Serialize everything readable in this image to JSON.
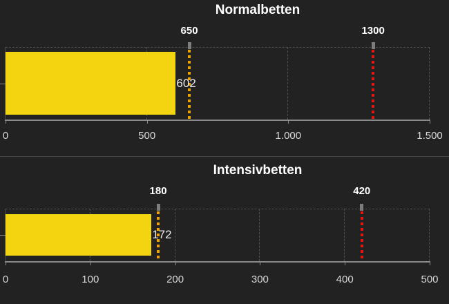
{
  "page": {
    "background": "#212221"
  },
  "colors": {
    "bar": "#F2D411",
    "target_marker": "#EFA400",
    "limit_marker": "#E31414",
    "marker_cap": "#7d7d7d",
    "axis": "#8a8a8a",
    "y_axis": "#4a4a4a",
    "grid": "#4f4f4f",
    "title_text": "#ffffff",
    "tick_text": "#d9d9d9",
    "value_text": "#eaeaea",
    "divider": "#444444"
  },
  "chart_data": [
    {
      "type": "bar",
      "orientation": "horizontal",
      "title": "Normalbetten",
      "bar": {
        "value": 602,
        "label": "602"
      },
      "markers": [
        {
          "value": 650,
          "label": "650",
          "role": "target"
        },
        {
          "value": 1300,
          "label": "1300",
          "role": "limit"
        }
      ],
      "xlim": [
        0,
        1500
      ],
      "ticks": [
        {
          "value": 0,
          "label": "0"
        },
        {
          "value": 500,
          "label": "500"
        },
        {
          "value": 1000,
          "label": "1.000"
        },
        {
          "value": 1500,
          "label": "1.500"
        }
      ],
      "grid": true
    },
    {
      "type": "bar",
      "orientation": "horizontal",
      "title": "Intensivbetten",
      "bar": {
        "value": 172,
        "label": "172"
      },
      "markers": [
        {
          "value": 180,
          "label": "180",
          "role": "target"
        },
        {
          "value": 420,
          "label": "420",
          "role": "limit"
        }
      ],
      "xlim": [
        0,
        500
      ],
      "ticks": [
        {
          "value": 0,
          "label": "0"
        },
        {
          "value": 100,
          "label": "100"
        },
        {
          "value": 200,
          "label": "200"
        },
        {
          "value": 300,
          "label": "300"
        },
        {
          "value": 400,
          "label": "400"
        },
        {
          "value": 500,
          "label": "500"
        }
      ],
      "grid": true
    }
  ]
}
